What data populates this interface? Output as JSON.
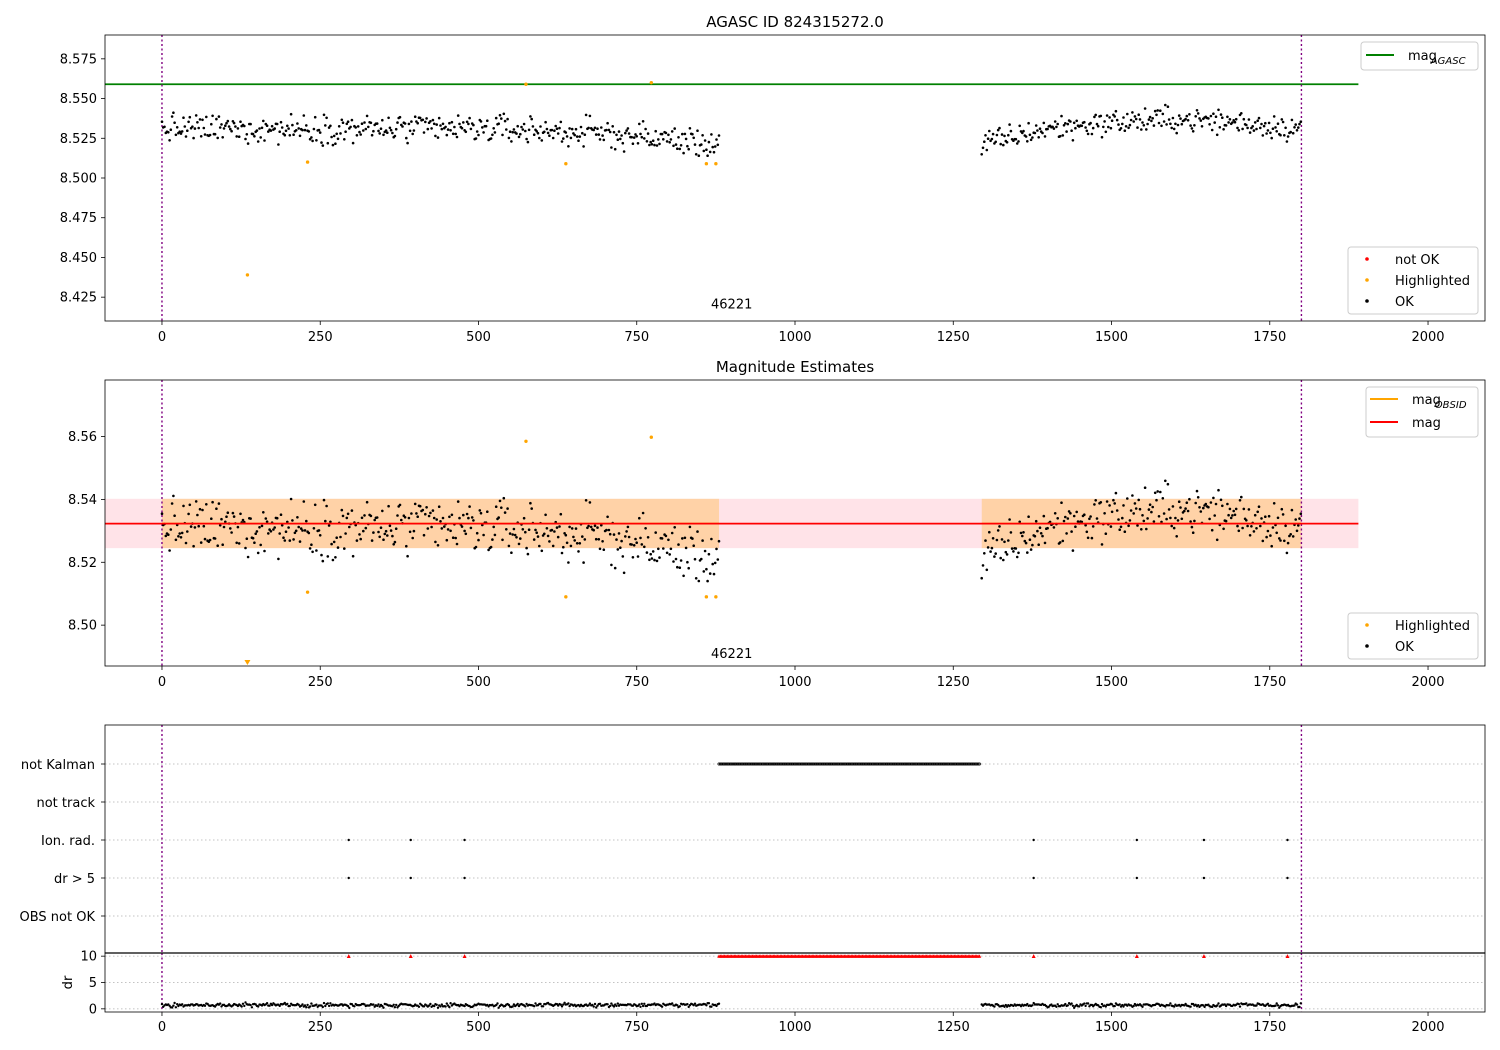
{
  "chart_data": [
    {
      "id": "top",
      "type": "scatter",
      "title": "AGASC ID 824315272.0",
      "xlabel": "",
      "ylabel": "",
      "xlim": [
        -90,
        2090
      ],
      "ylim": [
        8.41,
        8.59
      ],
      "xticks": [
        0,
        250,
        500,
        750,
        1000,
        1250,
        1500,
        1750,
        2000
      ],
      "yticks": [
        8.425,
        8.45,
        8.475,
        8.5,
        8.525,
        8.55,
        8.575
      ],
      "ytick_labels": [
        "8.425",
        "8.450",
        "8.475",
        "8.500",
        "8.525",
        "8.550",
        "8.575"
      ],
      "vlines": [
        0,
        1800
      ],
      "hlines": [
        {
          "name": "mag_AGASC",
          "y": 8.559,
          "x": [
            -90,
            1890
          ],
          "color": "#008000"
        }
      ],
      "annotation": {
        "text": "46221",
        "x": 900,
        "y": 8.418
      },
      "segments": [
        {
          "x": [
            0,
            880
          ],
          "center": 8.531,
          "spread": 0.008,
          "trend": [
            0,
            0,
            0,
            0,
            -0.003,
            -0.01
          ]
        },
        {
          "x": [
            1295,
            1800
          ],
          "center": 8.531,
          "spread": 0.007,
          "trend": [
            -0.01,
            0,
            0.004,
            0.006,
            0.004,
            0
          ]
        }
      ],
      "highlighted": [
        {
          "x": 135,
          "y": 8.439
        },
        {
          "x": 230,
          "y": 8.51
        },
        {
          "x": 575,
          "y": 8.559
        },
        {
          "x": 638,
          "y": 8.509
        },
        {
          "x": 773,
          "y": 8.56
        },
        {
          "x": 860,
          "y": 8.509
        },
        {
          "x": 875,
          "y": 8.509
        }
      ],
      "legends": [
        {
          "position": "top-right",
          "entries": [
            {
              "label": "mag",
              "sub": "AGASC",
              "kind": "line",
              "color": "#008000"
            }
          ]
        },
        {
          "position": "bottom-right",
          "entries": [
            {
              "label": "not OK",
              "kind": "dot",
              "color": "#ff0000"
            },
            {
              "label": "Highlighted",
              "kind": "dot",
              "color": "#ffa500"
            },
            {
              "label": "OK",
              "kind": "dot",
              "color": "#000000"
            }
          ]
        }
      ]
    },
    {
      "id": "middle",
      "type": "scatter",
      "title": "Magnitude Estimates",
      "xlabel": "",
      "ylabel": "",
      "xlim": [
        -90,
        2090
      ],
      "ylim": [
        8.487,
        8.578
      ],
      "xticks": [
        0,
        250,
        500,
        750,
        1000,
        1250,
        1500,
        1750,
        2000
      ],
      "yticks": [
        8.5,
        8.52,
        8.54,
        8.56
      ],
      "ytick_labels": [
        "8.50",
        "8.52",
        "8.54",
        "8.56"
      ],
      "vlines": [
        0,
        1800
      ],
      "mag_line": {
        "y": 8.5323,
        "x": [
          -90,
          1890
        ],
        "color": "#ff0000"
      },
      "mag_band": {
        "y": [
          8.5245,
          8.5402
        ],
        "x": [
          -90,
          1890
        ],
        "color": "#ffc0cb"
      },
      "mag_obsid": [
        {
          "x": [
            0,
            880
          ],
          "y": 8.5323,
          "band": [
            8.5245,
            8.5402
          ],
          "color": "#ffa500"
        },
        {
          "x": [
            1295,
            1800
          ],
          "y": 8.5323,
          "band": [
            8.5245,
            8.5402
          ],
          "color": "#ffa500"
        }
      ],
      "annotation": {
        "text": "46221",
        "x": 900,
        "y": 8.4895
      },
      "highlighted": [
        {
          "x": 230,
          "y": 8.5105
        },
        {
          "x": 575,
          "y": 8.5585
        },
        {
          "x": 638,
          "y": 8.509
        },
        {
          "x": 773,
          "y": 8.5598
        },
        {
          "x": 860,
          "y": 8.509
        },
        {
          "x": 875,
          "y": 8.509
        }
      ],
      "off_scale_marker": {
        "x": 135,
        "color": "#ffa500"
      },
      "legends": [
        {
          "position": "top-right",
          "entries": [
            {
              "label": "mag",
              "sub": "OBSID",
              "kind": "line",
              "color": "#ffa500"
            },
            {
              "label": "mag",
              "sub": "",
              "kind": "line",
              "color": "#ff0000"
            }
          ]
        },
        {
          "position": "bottom-right",
          "entries": [
            {
              "label": "Highlighted",
              "kind": "dot",
              "color": "#ffa500"
            },
            {
              "label": "OK",
              "kind": "dot",
              "color": "#000000"
            }
          ]
        }
      ]
    },
    {
      "id": "flags",
      "type": "scatter",
      "xlim": [
        -90,
        2090
      ],
      "xticks": [
        0,
        250,
        500,
        750,
        1000,
        1250,
        1500,
        1750,
        2000
      ],
      "vlines": [
        0,
        1800
      ],
      "categories": [
        "not Kalman",
        "not track",
        "Ion. rad.",
        "dr > 5",
        "OBS not OK"
      ],
      "rows": [
        {
          "name": "not Kalman",
          "ranges": [
            [
              880,
              1292
            ]
          ],
          "x": []
        },
        {
          "name": "not track",
          "ranges": [],
          "x": []
        },
        {
          "name": "Ion. rad.",
          "ranges": [],
          "x": [
            295,
            393,
            478,
            1377,
            1540,
            1646,
            1778
          ]
        },
        {
          "name": "dr > 5",
          "ranges": [],
          "x": [
            295,
            393,
            478,
            1377,
            1540,
            1646,
            1778
          ]
        },
        {
          "name": "OBS not OK",
          "ranges": [],
          "x": []
        }
      ]
    },
    {
      "id": "dr",
      "type": "scatter",
      "xlim": [
        -90,
        2090
      ],
      "ylim": [
        -0.6,
        10.6
      ],
      "ylabel": "dr",
      "yticks": [
        0,
        5,
        10
      ],
      "ytick_labels": [
        "0",
        "5",
        "10"
      ],
      "xticks": [
        0,
        250,
        500,
        750,
        1000,
        1250,
        1500,
        1750,
        2000
      ],
      "xtick_labels": [
        "0",
        "250",
        "500",
        "750",
        "1000",
        "1250",
        "1500",
        "1750",
        "2000"
      ],
      "vlines": [
        0,
        1800
      ],
      "clipped_value": 10,
      "clipped_ranges": [
        [
          880,
          1292
        ]
      ],
      "clipped_x": [
        295,
        393,
        478,
        1377,
        1540,
        1646,
        1778
      ],
      "segments": [
        {
          "x": [
            0,
            880
          ],
          "center": 0.7,
          "spread": 0.35
        },
        {
          "x": [
            1295,
            1800
          ],
          "center": 0.7,
          "spread": 0.35
        }
      ]
    }
  ]
}
